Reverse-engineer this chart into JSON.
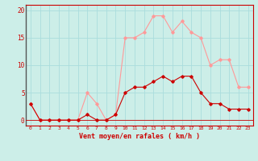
{
  "hours": [
    0,
    1,
    2,
    3,
    4,
    5,
    6,
    7,
    8,
    9,
    10,
    11,
    12,
    13,
    14,
    15,
    16,
    17,
    18,
    19,
    20,
    21,
    22,
    23
  ],
  "wind_avg": [
    3,
    0,
    0,
    0,
    0,
    0,
    1,
    0,
    0,
    1,
    5,
    6,
    6,
    7,
    8,
    7,
    8,
    8,
    5,
    3,
    3,
    2,
    2,
    2
  ],
  "wind_gust": [
    3,
    0,
    0,
    0,
    0,
    0,
    5,
    3,
    0,
    1,
    15,
    15,
    16,
    19,
    19,
    16,
    18,
    16,
    15,
    10,
    11,
    11,
    6,
    6
  ],
  "bg_color": "#cceee8",
  "grid_color": "#aadddd",
  "line_avg_color": "#cc0000",
  "line_gust_color": "#ff9999",
  "xlabel": "Vent moyen/en rafales ( km/h )",
  "ylim": [
    -1,
    21
  ],
  "yticks": [
    0,
    5,
    10,
    15,
    20
  ],
  "xlim": [
    -0.5,
    23.5
  ]
}
